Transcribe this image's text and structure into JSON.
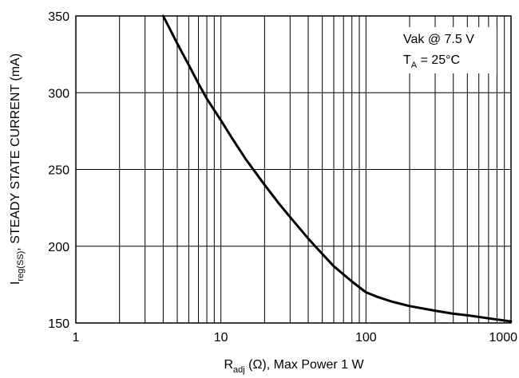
{
  "chart_data": {
    "type": "line",
    "x_scale": "log",
    "y_scale": "linear",
    "xlim": [
      1,
      1000
    ],
    "ylim": [
      150,
      350
    ],
    "grid": true,
    "x_ticks": [
      1,
      10,
      100,
      1000
    ],
    "x_tick_labels": [
      "1",
      "10",
      "100",
      "1000"
    ],
    "y_ticks": [
      150,
      200,
      250,
      300,
      350
    ],
    "y_tick_labels": [
      "150",
      "200",
      "250",
      "300",
      "350"
    ],
    "xlabel": {
      "main": "R",
      "sub": "adj",
      "rest": " (Ω), Max Power 1 W"
    },
    "ylabel": {
      "main": "I",
      "sub": "reg(SS)",
      "rest": ", STEADY STATE CURRENT (mA)"
    },
    "annotations": {
      "line1": "Vak @ 7.5 V",
      "line2_main": "T",
      "line2_sub": "A",
      "line2_rest": " = 25°C"
    },
    "series": [
      {
        "x": [
          4,
          5,
          6,
          7,
          8,
          10,
          12,
          15,
          20,
          25,
          30,
          40,
          50,
          60,
          80,
          100,
          120,
          150,
          200,
          300,
          400,
          500,
          700,
          1000
        ],
        "y": [
          350,
          332,
          318,
          306,
          296,
          282,
          270,
          256,
          240,
          228,
          219,
          205,
          195,
          187,
          177,
          170,
          167,
          164,
          161,
          158,
          156,
          155,
          153,
          151
        ]
      }
    ]
  }
}
